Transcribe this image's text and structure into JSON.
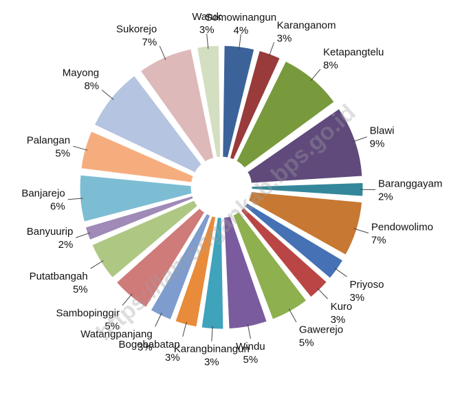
{
  "chart_data": {
    "type": "pie",
    "categories": [
      "Somowinangun",
      "Karanganom",
      "Ketapangtelu",
      "Blawi",
      "Baranggayam",
      "Pendowolimo",
      "Priyoso",
      "Kuro",
      "Gawerejo",
      "Windu",
      "Karangbinangun",
      "Bogobabatan",
      "Watangpanjang",
      "Sambopinggir",
      "Putatbangah",
      "Banyuurip",
      "Banjarejo",
      "Palangan",
      "Mayong",
      "Sukorejo",
      "Waruk"
    ],
    "values": [
      4,
      3,
      8,
      9,
      2,
      7,
      3,
      3,
      5,
      5,
      3,
      3,
      3,
      5,
      5,
      2,
      6,
      5,
      8,
      7,
      3
    ],
    "value_labels": [
      "4%",
      "3%",
      "8%",
      "9%",
      "2%",
      "7%",
      "3%",
      "3%",
      "5%",
      "5%",
      "3%",
      "3%",
      "3%",
      "5%",
      "5%",
      "2%",
      "6%",
      "5%",
      "8%",
      "7%",
      "3%"
    ],
    "colors": [
      "#3c6399",
      "#983b3a",
      "#789a3c",
      "#604a7b",
      "#34879a",
      "#c77832",
      "#4672b5",
      "#b94645",
      "#8eb04e",
      "#7a5c9e",
      "#3fa3bc",
      "#e88b3b",
      "#7e9ccd",
      "#cf7b7a",
      "#aec884",
      "#9f8ab8",
      "#7cbdd4",
      "#f6ad7e",
      "#b5c4e0",
      "#deb9b9",
      "#d3dfc0"
    ],
    "watermark": "https://lamongankab.bps.go.id"
  }
}
